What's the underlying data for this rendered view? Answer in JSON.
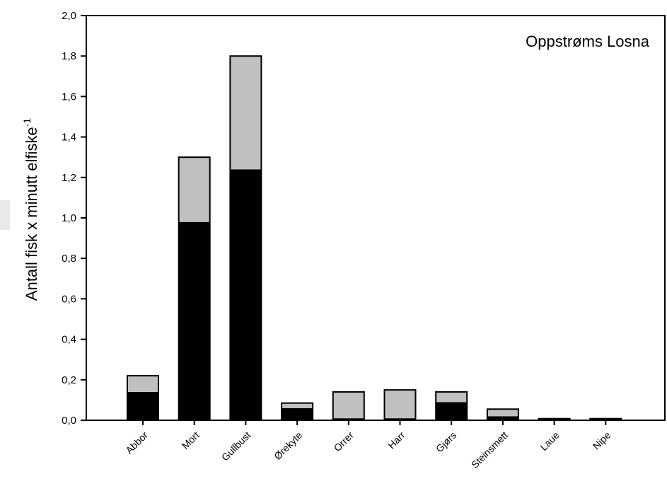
{
  "chart_data": {
    "type": "bar",
    "stacked": true,
    "annotation": "Oppstrøms Losna",
    "ylabel": "Antall fisk x minutt elfiske",
    "ylabel_superscript": "-1",
    "xlabel": "",
    "ylim": [
      0,
      2.0
    ],
    "yticks": [
      "0,0",
      "0,2",
      "0,4",
      "0,6",
      "0,8",
      "1,0",
      "1,2",
      "1,4",
      "1,6",
      "1,8",
      "2,0"
    ],
    "grid": false,
    "legend": "none",
    "categories": [
      "Abbor",
      "Mort",
      "Gullbust",
      "Ørekyte",
      "Orrer",
      "Harr",
      "Gjørs",
      "Steinsmett",
      "Laue",
      "Nipe"
    ],
    "series": [
      {
        "color": "#000000",
        "values": [
          0.14,
          0.98,
          1.24,
          0.06,
          0.01,
          0.01,
          0.09,
          0.02,
          0.005,
          0.005
        ]
      },
      {
        "color": "#c0c0c0",
        "values": [
          0.08,
          0.32,
          0.56,
          0.025,
          0.13,
          0.14,
          0.05,
          0.035,
          0.003,
          0.003
        ]
      }
    ]
  }
}
